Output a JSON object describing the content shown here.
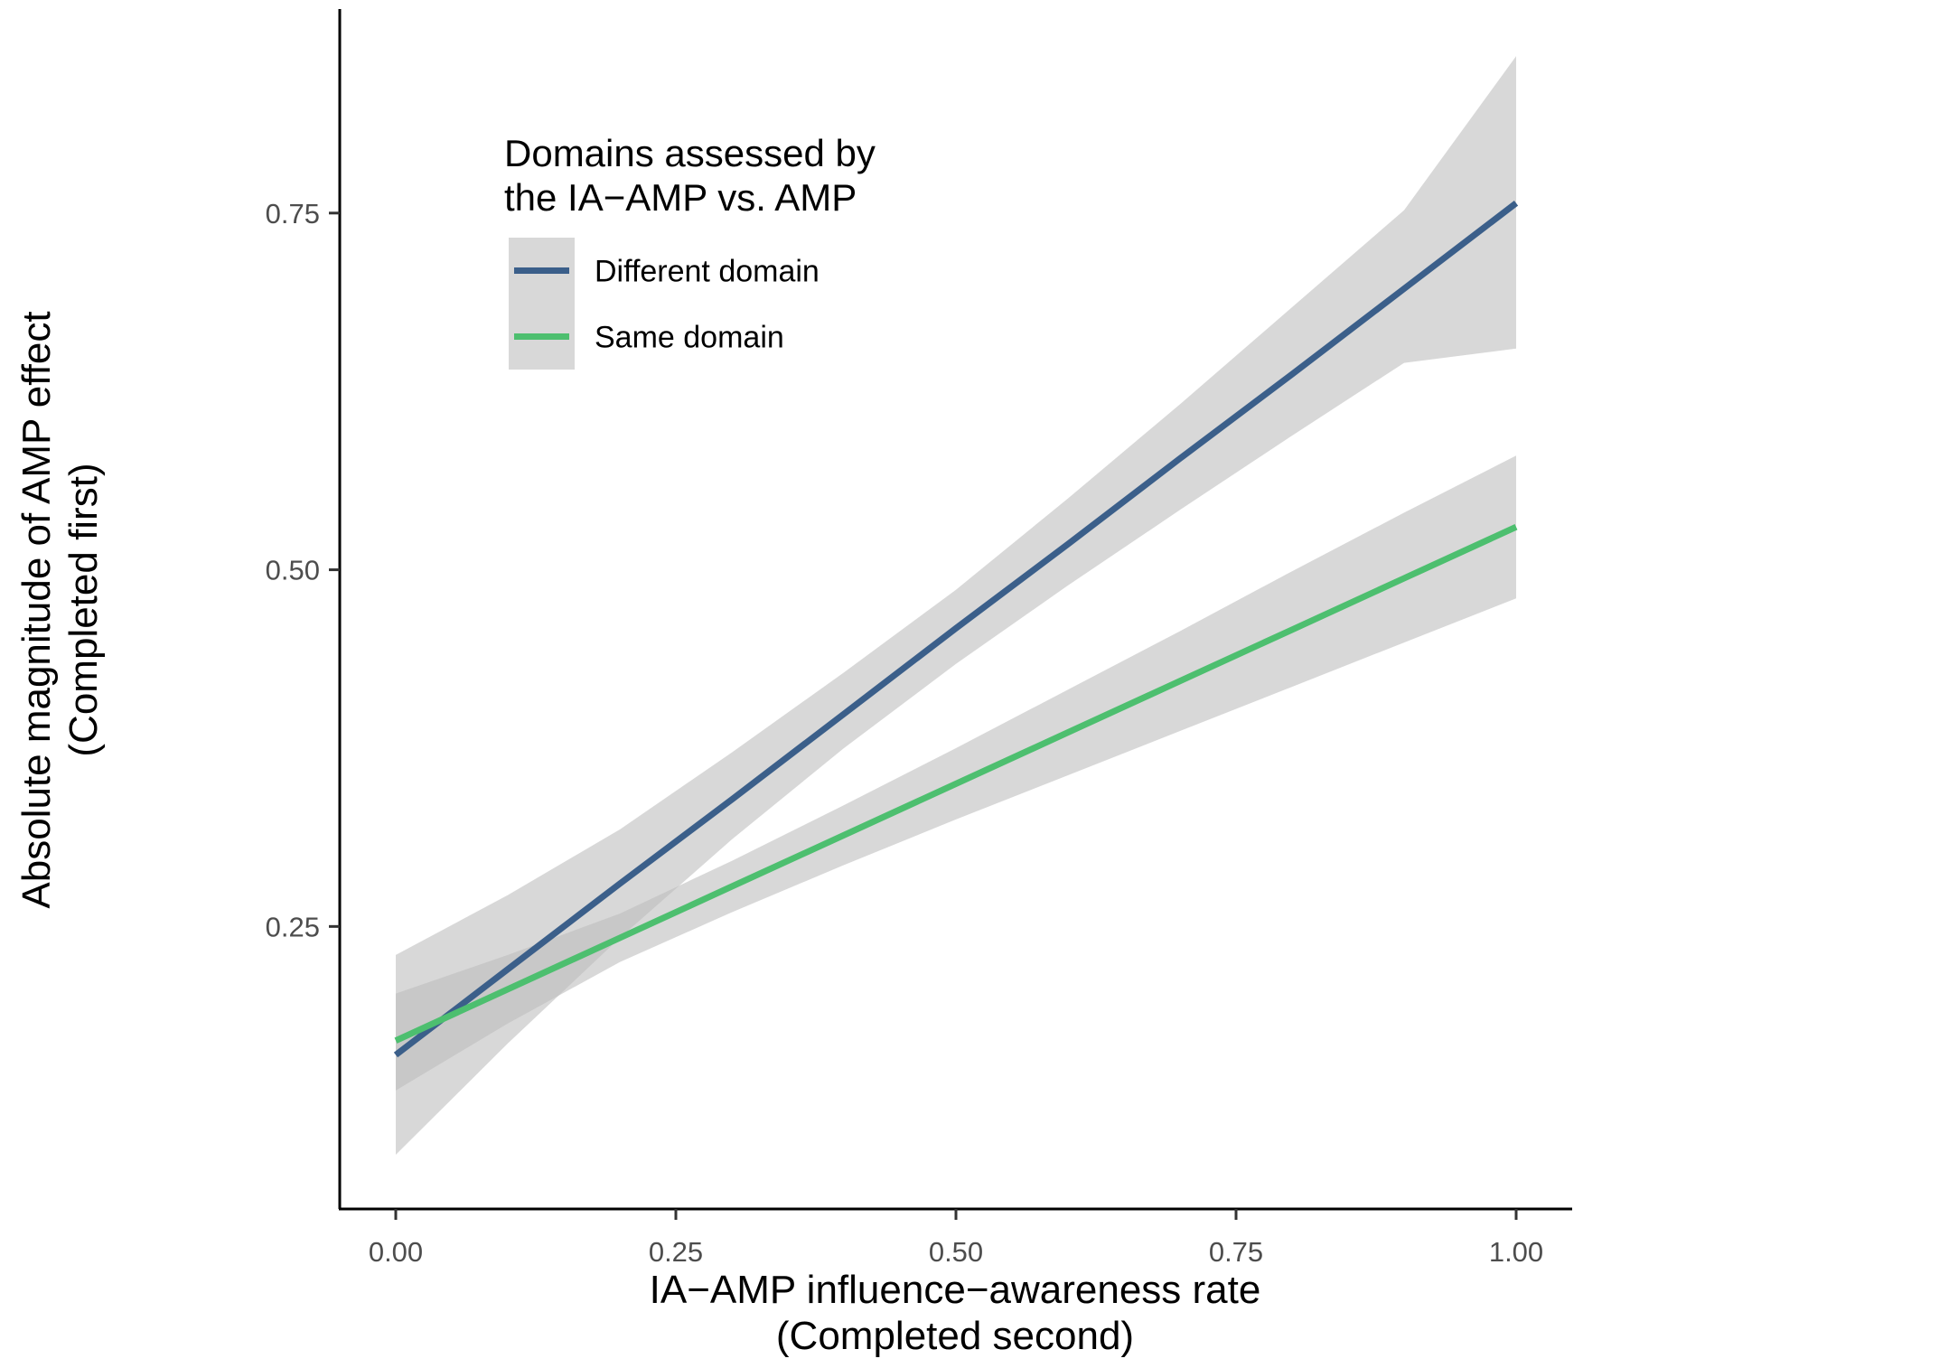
{
  "chart_data": {
    "type": "line",
    "title": "",
    "xlabel": "IA−AMP influence−awareness rate",
    "xlabel_sub": "(Completed second)",
    "ylabel": "Absolute magnitude of AMP effect",
    "ylabel_sub": "(Completed first)",
    "xlim": [
      -0.05,
      1.05
    ],
    "ylim": [
      0.052,
      0.893
    ],
    "x_ticks": [
      0.0,
      0.25,
      0.5,
      0.75,
      1.0
    ],
    "x_tick_labels": [
      "0.00",
      "0.25",
      "0.50",
      "0.75",
      "1.00"
    ],
    "y_ticks": [
      0.25,
      0.5,
      0.75
    ],
    "y_tick_labels": [
      "0.25",
      "0.50",
      "0.75"
    ],
    "grid": false,
    "legend": {
      "title_line1": "Domains assessed by",
      "title_line2": "the IA−AMP vs. AMP",
      "placement": "top-left"
    },
    "ci_color": "#bebebe",
    "series": [
      {
        "name": "Different domain",
        "color": "#3b5f8a",
        "x": [
          0.0,
          0.1,
          0.2,
          0.3,
          0.4,
          0.5,
          0.6,
          0.7,
          0.8,
          0.9,
          1.0
        ],
        "y": [
          0.16,
          0.22,
          0.28,
          0.339,
          0.399,
          0.459,
          0.518,
          0.578,
          0.637,
          0.697,
          0.757
        ],
        "ci_lower": [
          0.09,
          0.168,
          0.242,
          0.311,
          0.375,
          0.434,
          0.489,
          0.542,
          0.594,
          0.645,
          0.655
        ],
        "ci_upper": [
          0.23,
          0.272,
          0.318,
          0.372,
          0.428,
          0.486,
          0.55,
          0.616,
          0.684,
          0.752,
          0.86
        ]
      },
      {
        "name": "Same domain",
        "color": "#4dbf6f",
        "x": [
          0.0,
          0.1,
          0.2,
          0.3,
          0.4,
          0.5,
          0.6,
          0.7,
          0.8,
          0.9,
          1.0
        ],
        "y": [
          0.17,
          0.206,
          0.242,
          0.278,
          0.314,
          0.35,
          0.386,
          0.422,
          0.458,
          0.494,
          0.53
        ],
        "ci_lower": [
          0.135,
          0.182,
          0.225,
          0.26,
          0.293,
          0.325,
          0.356,
          0.387,
          0.418,
          0.449,
          0.48
        ],
        "ci_upper": [
          0.203,
          0.23,
          0.259,
          0.296,
          0.335,
          0.375,
          0.416,
          0.457,
          0.499,
          0.54,
          0.58
        ]
      }
    ]
  }
}
